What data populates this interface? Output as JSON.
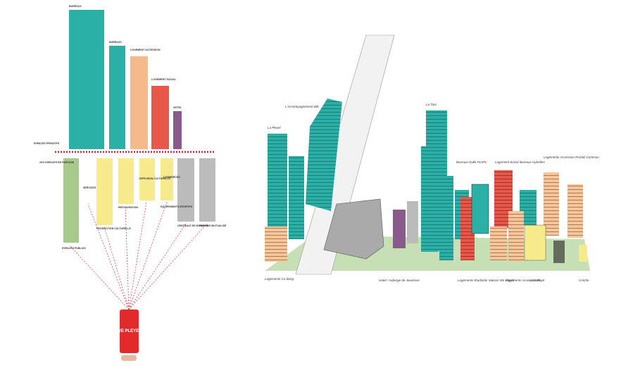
{
  "left": {
    "private": [
      "BUREAUX",
      "BUREAUX",
      "LOGEMENT ACCESSION",
      "LOGEMENT SOCIAL",
      "HOTEL"
    ],
    "private_title": "ESPACES PRIVATIFS",
    "shared_title": "20% ESPACES EN PARTAGE",
    "public_title": "ESPACES PUBLICS",
    "shared": [
      "SERVICES",
      "PRODUCTION CULTURELLE",
      "RESTAURATION",
      "DIFFUSION CULTURELLE",
      "EQUIPEMENTS SPORTIFS",
      "COMMERCES",
      "CENTRALE DE MOBILITE",
      "PARKING MUTUALISE"
    ],
    "app": "WE PLEYEL"
  },
  "right": {
    "top_labels": [
      "La Pleyel",
      "L'Accompagnement Bât",
      "La Tour",
      "Bureaux Dalle PLHFL",
      "Logement Social",
      "Bureaux Hybrides",
      "Logements Accession Produit Commun"
    ],
    "bottom_labels": [
      "Logements Co-living",
      "Hotel / Auberge de Jeunesse",
      "Logements Étudiants",
      "Maison We Pleyel",
      "Logements Accession Payé",
      "La Halle",
      "Crèche"
    ]
  }
}
